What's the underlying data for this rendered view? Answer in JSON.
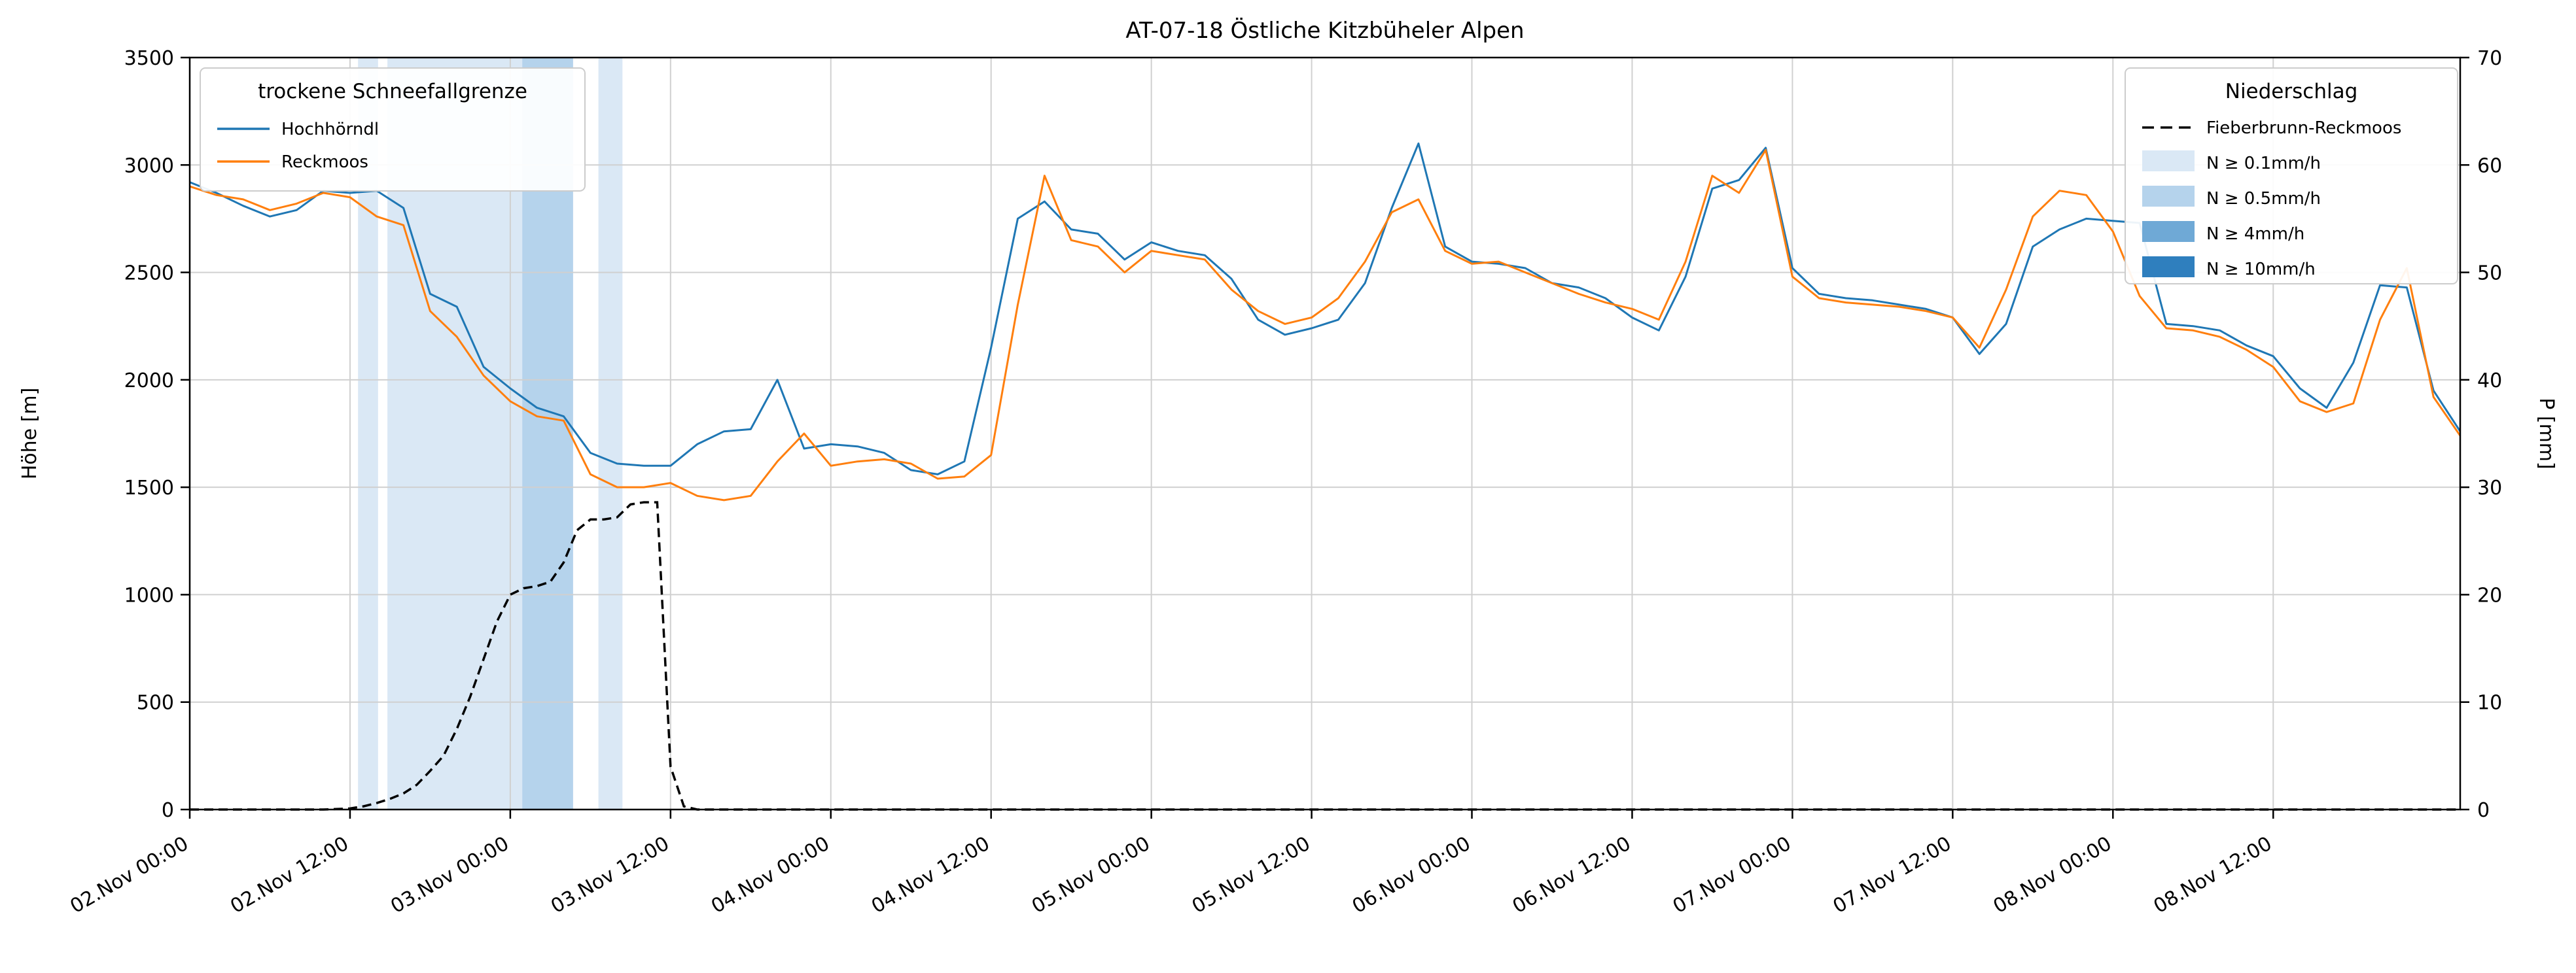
{
  "chart_data": {
    "type": "line",
    "title": "AT-07-18 Östliche Kitzbüheler Alpen",
    "grid": true,
    "x_axis": {
      "unit": "hours since 02.Nov 00:00",
      "range": [
        0,
        170
      ],
      "ticks": [
        {
          "t": 0,
          "label": "02.Nov 00:00"
        },
        {
          "t": 12,
          "label": "02.Nov 12:00"
        },
        {
          "t": 24,
          "label": "03.Nov 00:00"
        },
        {
          "t": 36,
          "label": "03.Nov 12:00"
        },
        {
          "t": 48,
          "label": "04.Nov 00:00"
        },
        {
          "t": 60,
          "label": "04.Nov 12:00"
        },
        {
          "t": 72,
          "label": "05.Nov 00:00"
        },
        {
          "t": 84,
          "label": "05.Nov 12:00"
        },
        {
          "t": 96,
          "label": "06.Nov 00:00"
        },
        {
          "t": 108,
          "label": "06.Nov 12:00"
        },
        {
          "t": 120,
          "label": "07.Nov 00:00"
        },
        {
          "t": 132,
          "label": "07.Nov 12:00"
        },
        {
          "t": 144,
          "label": "08.Nov 00:00"
        },
        {
          "t": 156,
          "label": "08.Nov 12:00"
        }
      ]
    },
    "y_left": {
      "label": "Höhe [m]",
      "range": [
        0,
        3500
      ],
      "ticks": [
        0,
        500,
        1000,
        1500,
        2000,
        2500,
        3000,
        3500
      ]
    },
    "y_right": {
      "label": "P [mm]",
      "range": [
        0,
        70
      ],
      "ticks": [
        0,
        10,
        20,
        30,
        40,
        50,
        60,
        70
      ]
    },
    "series_x": [
      0,
      2,
      4,
      6,
      8,
      10,
      12,
      14,
      16,
      18,
      20,
      22,
      24,
      26,
      28,
      30,
      32,
      34,
      36,
      38,
      40,
      42,
      44,
      46,
      48,
      50,
      52,
      54,
      56,
      58,
      60,
      62,
      64,
      66,
      68,
      70,
      72,
      74,
      76,
      78,
      80,
      82,
      84,
      86,
      88,
      90,
      92,
      94,
      96,
      98,
      100,
      102,
      104,
      106,
      108,
      110,
      112,
      114,
      116,
      118,
      120,
      122,
      124,
      126,
      128,
      130,
      132,
      134,
      136,
      138,
      140,
      142,
      144,
      146,
      148,
      150,
      152,
      154,
      156,
      158,
      160,
      162,
      164,
      166,
      168,
      170
    ],
    "series": [
      {
        "name": "Hochhörndl",
        "color": "#1f77b4",
        "axis": "left",
        "values": [
          2920,
          2870,
          2810,
          2760,
          2790,
          2880,
          2870,
          2880,
          2800,
          2400,
          2340,
          2060,
          1960,
          1870,
          1830,
          1660,
          1610,
          1600,
          1600,
          1700,
          1760,
          1770,
          2000,
          1680,
          1700,
          1690,
          1660,
          1580,
          1560,
          1620,
          2150,
          2750,
          2830,
          2700,
          2680,
          2560,
          2640,
          2600,
          2580,
          2470,
          2280,
          2210,
          2240,
          2280,
          2450,
          2800,
          3100,
          2620,
          2550,
          2540,
          2520,
          2450,
          2430,
          2380,
          2290,
          2230,
          2480,
          2890,
          2930,
          3080,
          2520,
          2400,
          2380,
          2370,
          2350,
          2330,
          2290,
          2120,
          2260,
          2620,
          2700,
          2750,
          2740,
          2730,
          2260,
          2250,
          2230,
          2160,
          2110,
          1960,
          1870,
          2080,
          2440,
          2430,
          1950,
          1760
        ]
      },
      {
        "name": "Reckmoos",
        "color": "#ff7f0e",
        "axis": "left",
        "values": [
          2900,
          2860,
          2840,
          2790,
          2820,
          2870,
          2850,
          2760,
          2720,
          2320,
          2200,
          2020,
          1900,
          1830,
          1810,
          1560,
          1500,
          1500,
          1520,
          1460,
          1440,
          1460,
          1620,
          1750,
          1600,
          1620,
          1630,
          1610,
          1540,
          1550,
          1650,
          2350,
          2950,
          2650,
          2620,
          2500,
          2600,
          2580,
          2560,
          2420,
          2320,
          2260,
          2290,
          2380,
          2550,
          2780,
          2840,
          2600,
          2540,
          2550,
          2500,
          2450,
          2400,
          2360,
          2330,
          2280,
          2550,
          2950,
          2870,
          3070,
          2480,
          2380,
          2360,
          2350,
          2340,
          2320,
          2290,
          2150,
          2420,
          2760,
          2880,
          2860,
          2690,
          2390,
          2240,
          2230,
          2200,
          2140,
          2060,
          1900,
          1850,
          1890,
          2280,
          2520,
          1920,
          1740
        ]
      }
    ],
    "precipitation": {
      "name": "Fieberbrunn-Reckmoos",
      "color": "#000000",
      "style": "dashed",
      "axis": "right",
      "points": [
        [
          0,
          0
        ],
        [
          10,
          0
        ],
        [
          12,
          0.1
        ],
        [
          13,
          0.3
        ],
        [
          14,
          0.6
        ],
        [
          15,
          1.0
        ],
        [
          16,
          1.5
        ],
        [
          17,
          2.3
        ],
        [
          18,
          3.6
        ],
        [
          19,
          5.0
        ],
        [
          20,
          7.5
        ],
        [
          21,
          10.5
        ],
        [
          22,
          14.0
        ],
        [
          23,
          17.5
        ],
        [
          24,
          20.0
        ],
        [
          25,
          20.6
        ],
        [
          26,
          20.8
        ],
        [
          27,
          21.2
        ],
        [
          28,
          23.0
        ],
        [
          29,
          26.0
        ],
        [
          30,
          27.0
        ],
        [
          31,
          27.0
        ],
        [
          32,
          27.2
        ],
        [
          33,
          28.4
        ],
        [
          34,
          28.6
        ],
        [
          35,
          28.6
        ],
        [
          36,
          4.0
        ],
        [
          37,
          0.3
        ],
        [
          38,
          0
        ],
        [
          50,
          0
        ],
        [
          70,
          0
        ],
        [
          90,
          0
        ],
        [
          110,
          0
        ],
        [
          130,
          0
        ],
        [
          150,
          0
        ],
        [
          170,
          0
        ]
      ]
    },
    "band_levels": [
      {
        "label": "N ≥ 0.1mm/h",
        "color": "#dae8f5"
      },
      {
        "label": "N ≥ 0.5mm/h",
        "color": "#b5d3ec"
      },
      {
        "label": "N ≥ 4mm/h",
        "color": "#6fa9d6"
      },
      {
        "label": "N ≥ 10mm/h",
        "color": "#2f7fbe"
      }
    ],
    "bands": [
      {
        "start": 12.6,
        "end": 14.1,
        "level": 0
      },
      {
        "start": 14.8,
        "end": 28.7,
        "level": 0
      },
      {
        "start": 24.9,
        "end": 28.7,
        "level": 1
      },
      {
        "start": 30.6,
        "end": 32.4,
        "level": 0
      }
    ],
    "legends": {
      "snowline": {
        "title": "trockene Schneefallgrenze"
      },
      "precip": {
        "title": "Niederschlag"
      }
    }
  }
}
